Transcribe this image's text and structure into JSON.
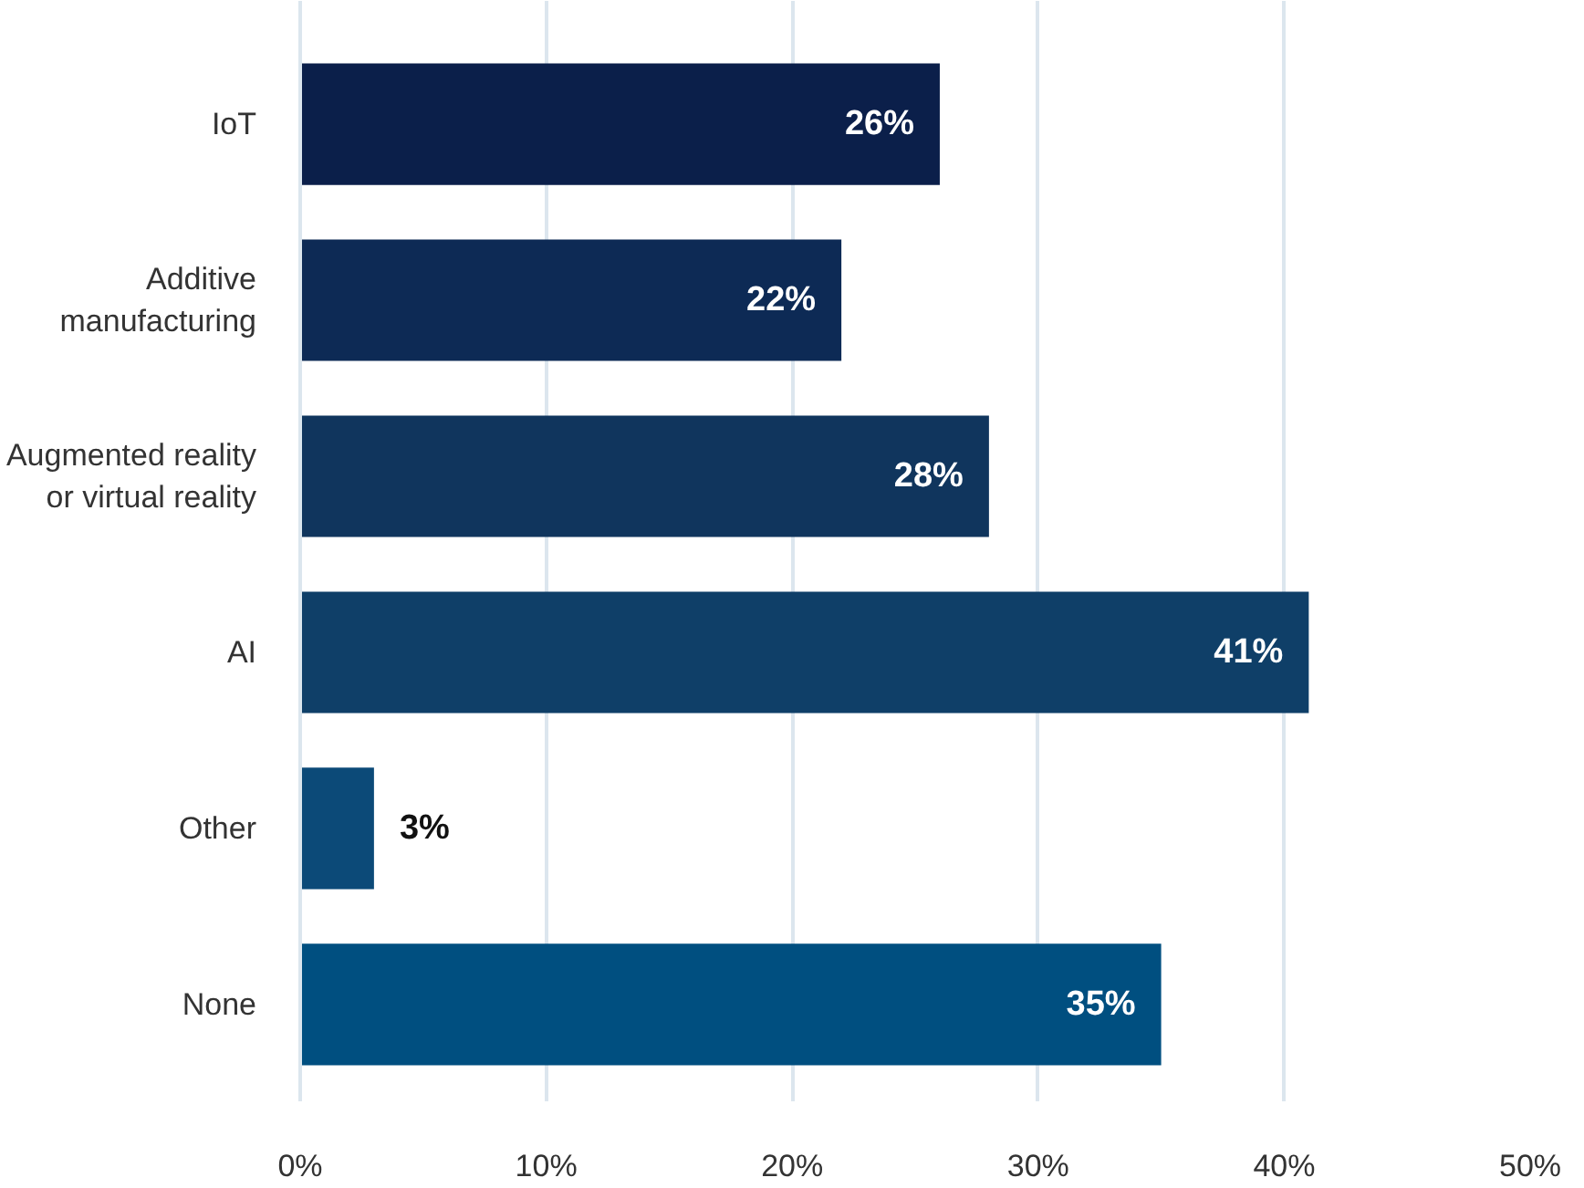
{
  "chart_data": {
    "type": "bar",
    "orientation": "horizontal",
    "categories": [
      "IoT",
      "Additive manufacturing",
      "Augmented reality or virtual reality",
      "AI",
      "Other",
      "None"
    ],
    "values": [
      26,
      22,
      28,
      41,
      3,
      35
    ],
    "colors": [
      "#0b1f4a",
      "#0d2a55",
      "#10355d",
      "#0f3f68",
      "#0c4a78",
      "#004f80"
    ],
    "value_labels": [
      "26%",
      "22%",
      "28%",
      "41%",
      "3%",
      "35%"
    ],
    "xlim": [
      0,
      50
    ],
    "xticks": [
      {
        "value": 0,
        "label": "0%"
      },
      {
        "value": 10,
        "label": "10%"
      },
      {
        "value": 20,
        "label": "20%"
      },
      {
        "value": 30,
        "label": "30%"
      },
      {
        "value": 40,
        "label": "40%"
      },
      {
        "value": 50,
        "label": "50%"
      }
    ],
    "grid": "x"
  }
}
